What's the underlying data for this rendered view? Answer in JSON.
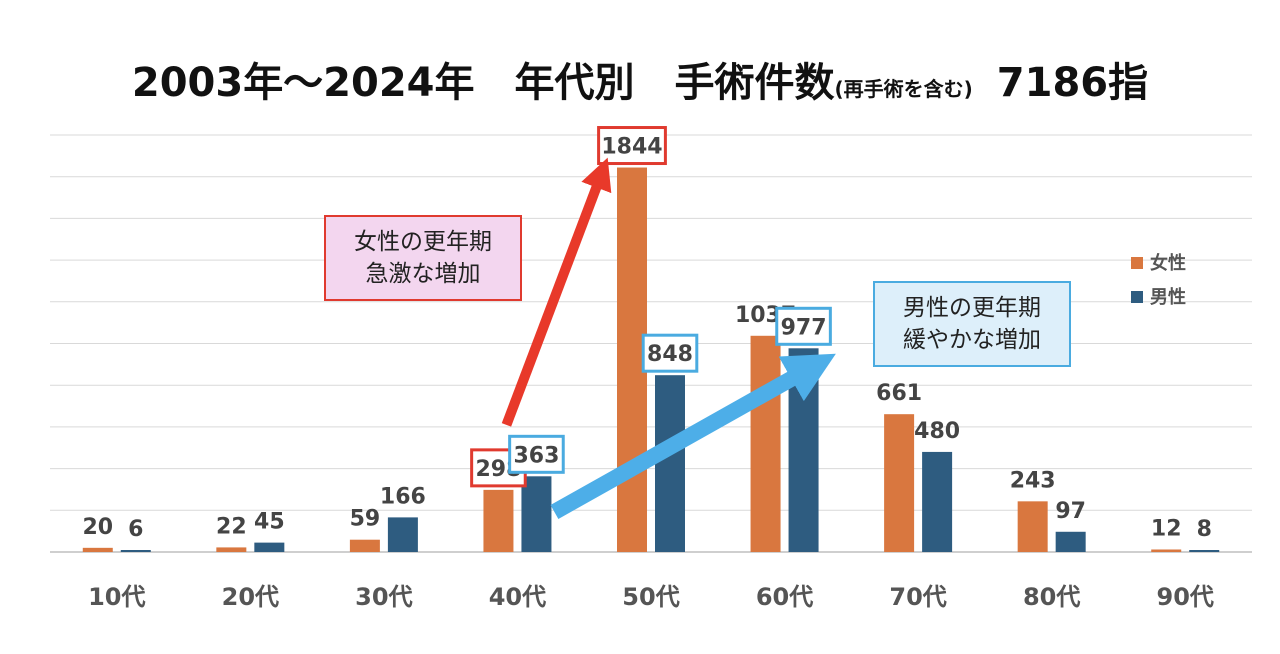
{
  "title": {
    "main": "2003年～2024年　年代別　手術件数",
    "sub": "(再手術を含む)",
    "total": "7186指"
  },
  "colors": {
    "female": "#D9773F",
    "male": "#2E5C80",
    "female_box": "#E03A2F",
    "male_box": "#4AABE0",
    "female_arrow": "#E8392A",
    "male_arrow": "#4DAEE8",
    "female_note_bg": "#F3D6EF",
    "male_note_bg": "#DDEFFA",
    "grid": "#D9D9D9",
    "axis": "#BFBFBF",
    "tick_text": "#555555",
    "value_text": "#444444"
  },
  "chart_data": {
    "type": "bar",
    "title": "2003年～2024年　年代別　手術件数(再手術を含む)　7186指",
    "categories": [
      "10代",
      "20代",
      "30代",
      "40代",
      "50代",
      "60代",
      "70代",
      "80代",
      "90代"
    ],
    "series": [
      {
        "name": "女性",
        "values": [
          20,
          22,
          59,
          298,
          1844,
          1037,
          661,
          243,
          12
        ]
      },
      {
        "name": "男性",
        "values": [
          6,
          45,
          166,
          363,
          848,
          977,
          480,
          97,
          8
        ]
      }
    ],
    "ylim": [
      0,
      2000
    ],
    "grid": true,
    "legend_position": "right",
    "highlighted": [
      {
        "series": "女性",
        "category": "40代"
      },
      {
        "series": "女性",
        "category": "50代"
      },
      {
        "series": "男性",
        "category": "40代"
      },
      {
        "series": "男性",
        "category": "50代"
      },
      {
        "series": "男性",
        "category": "60代"
      }
    ],
    "annotations": [
      {
        "series": "女性",
        "from": "40代",
        "to": "50代",
        "lines": [
          "女性の更年期",
          "急激な増加"
        ]
      },
      {
        "series": "男性",
        "from": "40代",
        "to": "60代",
        "lines": [
          "男性の更年期",
          "緩やかな増加"
        ]
      }
    ]
  }
}
